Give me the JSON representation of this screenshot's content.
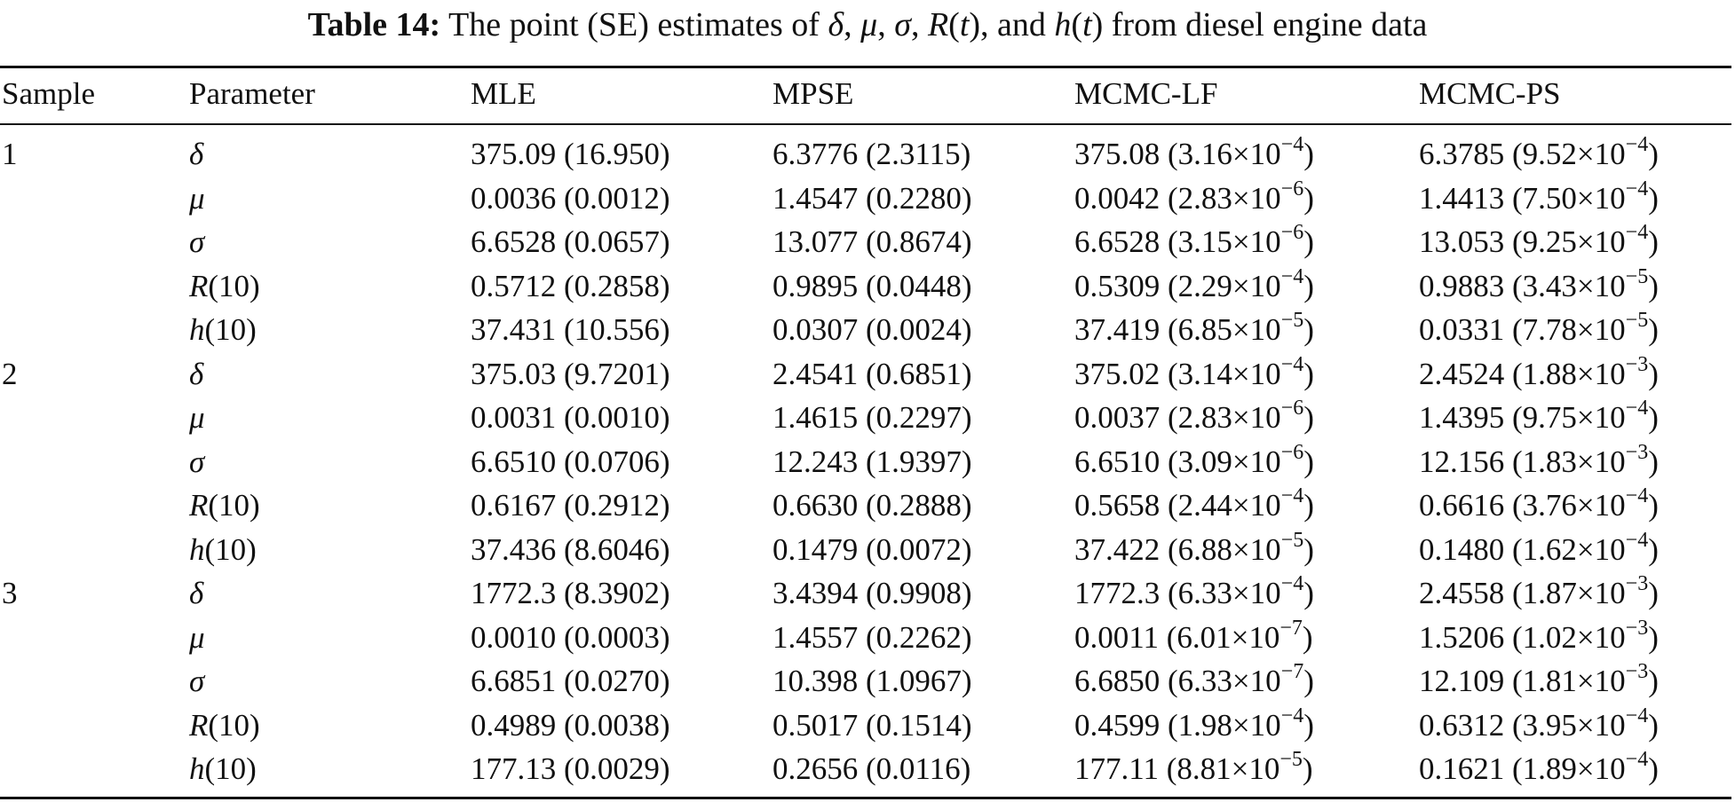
{
  "caption": {
    "label": "Table 14:",
    "text_prefix": "The point (SE) estimates of ",
    "sym_delta": "δ",
    "sym_mu": "μ",
    "sym_sigma": "σ",
    "sym_R": "R",
    "sym_t1": "t",
    "sym_h": "h",
    "sym_t2": "t",
    "text_suffix": " from diesel engine data"
  },
  "columns": [
    "Sample",
    "Parameter",
    "MLE",
    "MPSE",
    "MCMC-LF",
    "MCMC-PS"
  ],
  "rows": [
    {
      "sample": "1",
      "param": "δ",
      "mle": "375.09 (16.950)",
      "mpse": "6.3776 (2.3115)",
      "lf": {
        "v": "375.08 (3.16×10",
        "e": "−4",
        "c": ")"
      },
      "ps": {
        "v": "6.3785 (9.52×10",
        "e": "−4",
        "c": ")"
      }
    },
    {
      "sample": "",
      "param": "μ",
      "mle": "0.0036 (0.0012)",
      "mpse": "1.4547 (0.2280)",
      "lf": {
        "v": "0.0042 (2.83×10",
        "e": "−6",
        "c": ")"
      },
      "ps": {
        "v": "1.4413 (7.50×10",
        "e": "−4",
        "c": ")"
      }
    },
    {
      "sample": "",
      "param": "σ",
      "mle": "6.6528 (0.0657)",
      "mpse": "13.077 (0.8674)",
      "lf": {
        "v": "6.6528 (3.15×10",
        "e": "−6",
        "c": ")"
      },
      "ps": {
        "v": "13.053 (9.25×10",
        "e": "−4",
        "c": ")"
      }
    },
    {
      "sample": "",
      "param": "R",
      "arg": "(10)",
      "mle": "0.5712 (0.2858)",
      "mpse": "0.9895 (0.0448)",
      "lf": {
        "v": "0.5309 (2.29×10",
        "e": "−4",
        "c": ")"
      },
      "ps": {
        "v": "0.9883 (3.43×10",
        "e": "−5",
        "c": ")"
      }
    },
    {
      "sample": "",
      "param": "h",
      "arg": "(10)",
      "mle": "37.431 (10.556)",
      "mpse": "0.0307 (0.0024)",
      "lf": {
        "v": "37.419 (6.85×10",
        "e": "−5",
        "c": ")"
      },
      "ps": {
        "v": "0.0331 (7.78×10",
        "e": "−5",
        "c": ")"
      }
    },
    {
      "sample": "2",
      "param": "δ",
      "mle": "375.03 (9.7201)",
      "mpse": "2.4541 (0.6851)",
      "lf": {
        "v": "375.02 (3.14×10",
        "e": "−4",
        "c": ")"
      },
      "ps": {
        "v": "2.4524 (1.88×10",
        "e": "−3",
        "c": ")"
      }
    },
    {
      "sample": "",
      "param": "μ",
      "mle": "0.0031 (0.0010)",
      "mpse": "1.4615 (0.2297)",
      "lf": {
        "v": "0.0037 (2.83×10",
        "e": "−6",
        "c": ")"
      },
      "ps": {
        "v": "1.4395 (9.75×10",
        "e": "−4",
        "c": ")"
      }
    },
    {
      "sample": "",
      "param": "σ",
      "mle": "6.6510 (0.0706)",
      "mpse": "12.243 (1.9397)",
      "lf": {
        "v": "6.6510 (3.09×10",
        "e": "−6",
        "c": ")"
      },
      "ps": {
        "v": "12.156 (1.83×10",
        "e": "−3",
        "c": ")"
      }
    },
    {
      "sample": "",
      "param": "R",
      "arg": "(10)",
      "mle": "0.6167 (0.2912)",
      "mpse": "0.6630 (0.2888)",
      "lf": {
        "v": "0.5658 (2.44×10",
        "e": "−4",
        "c": ")"
      },
      "ps": {
        "v": "0.6616 (3.76×10",
        "e": "−4",
        "c": ")"
      }
    },
    {
      "sample": "",
      "param": "h",
      "arg": "(10)",
      "mle": "37.436 (8.6046)",
      "mpse": "0.1479 (0.0072)",
      "lf": {
        "v": "37.422 (6.88×10",
        "e": "−5",
        "c": ")"
      },
      "ps": {
        "v": "0.1480 (1.62×10",
        "e": "−4",
        "c": ")"
      }
    },
    {
      "sample": "3",
      "param": "δ",
      "mle": "1772.3 (8.3902)",
      "mpse": "3.4394 (0.9908)",
      "lf": {
        "v": "1772.3 (6.33×10",
        "e": "−4",
        "c": ")"
      },
      "ps": {
        "v": "2.4558 (1.87×10",
        "e": "−3",
        "c": ")"
      }
    },
    {
      "sample": "",
      "param": "μ",
      "mle": "0.0010 (0.0003)",
      "mpse": "1.4557 (0.2262)",
      "lf": {
        "v": "0.0011 (6.01×10",
        "e": "−7",
        "c": ")"
      },
      "ps": {
        "v": "1.5206 (1.02×10",
        "e": "−3",
        "c": ")"
      }
    },
    {
      "sample": "",
      "param": "σ",
      "mle": "6.6851 (0.0270)",
      "mpse": "10.398 (1.0967)",
      "lf": {
        "v": "6.6850 (6.33×10",
        "e": "−7",
        "c": ")"
      },
      "ps": {
        "v": "12.109 (1.81×10",
        "e": "−3",
        "c": ")"
      }
    },
    {
      "sample": "",
      "param": "R",
      "arg": "(10)",
      "mle": "0.4989 (0.0038)",
      "mpse": "0.5017 (0.1514)",
      "lf": {
        "v": "0.4599 (1.98×10",
        "e": "−4",
        "c": ")"
      },
      "ps": {
        "v": "0.6312 (3.95×10",
        "e": "−4",
        "c": ")"
      }
    },
    {
      "sample": "",
      "param": "h",
      "arg": "(10)",
      "mle": "177.13 (0.0029)",
      "mpse": "0.2656 (0.0116)",
      "lf": {
        "v": "177.11 (8.81×10",
        "e": "−5",
        "c": ")"
      },
      "ps": {
        "v": "0.1621 (1.89×10",
        "e": "−4",
        "c": ")"
      }
    }
  ]
}
